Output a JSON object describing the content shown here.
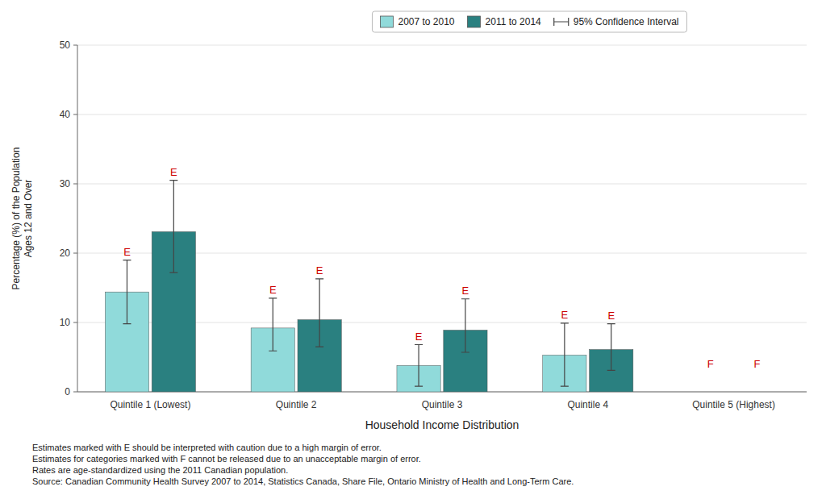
{
  "chart_data": {
    "type": "bar",
    "categories": [
      "Quintile 1 (Lowest)",
      "Quintile 2",
      "Quintile 3",
      "Quintile 4",
      "Quintile 5 (Highest)"
    ],
    "series": [
      {
        "name": "2007 to 2010",
        "color": "#90dada",
        "values": [
          14.4,
          9.2,
          3.8,
          5.3,
          null
        ],
        "ci_low": [
          9.8,
          5.9,
          0.8,
          0.8,
          null
        ],
        "ci_high": [
          19.0,
          13.5,
          6.8,
          9.9,
          null
        ]
      },
      {
        "name": "2011 to 2014",
        "color": "#2a8080",
        "values": [
          23.1,
          10.4,
          8.9,
          6.1,
          null
        ],
        "ci_low": [
          17.2,
          6.5,
          5.7,
          3.1,
          null
        ],
        "ci_high": [
          30.5,
          16.3,
          13.4,
          9.8,
          null
        ]
      }
    ],
    "ci_label": "95% Confidence Interval",
    "xlabel": "Household Income Distribution",
    "ylabel": "Percentage (%) of the Population\nAges 12 and Over",
    "ylim": [
      0,
      50
    ],
    "yticks": [
      0,
      10,
      20,
      30,
      40,
      50
    ],
    "grid": true,
    "legend": "top",
    "annotations": [
      {
        "text": "E",
        "series": 0,
        "index": 0,
        "color": "#cc0000"
      },
      {
        "text": "E",
        "series": 0,
        "index": 1,
        "color": "#cc0000"
      },
      {
        "text": "E",
        "series": 0,
        "index": 2,
        "color": "#cc0000"
      },
      {
        "text": "E",
        "series": 0,
        "index": 3,
        "color": "#cc0000"
      },
      {
        "text": "E",
        "series": 1,
        "index": 0,
        "color": "#cc0000"
      },
      {
        "text": "E",
        "series": 1,
        "index": 1,
        "color": "#cc0000"
      },
      {
        "text": "E",
        "series": 1,
        "index": 2,
        "color": "#cc0000"
      },
      {
        "text": "E",
        "series": 1,
        "index": 3,
        "color": "#cc0000"
      },
      {
        "text": "F",
        "series": 0,
        "index": 4,
        "color": "#cc0000"
      },
      {
        "text": "F",
        "series": 1,
        "index": 4,
        "color": "#cc0000"
      }
    ],
    "footnotes": [
      "Estimates marked with E should be interpreted with caution due to a high margin of error.",
      "Estimates for categories marked with F cannot be released due to an unacceptable margin of error.",
      "Rates are age-standardized using the 2011 Canadian population.",
      "Source: Canadian Community Health Survey 2007 to 2014, Statistics Canada, Share File, Ontario Ministry of Health and Long-Term Care."
    ]
  }
}
